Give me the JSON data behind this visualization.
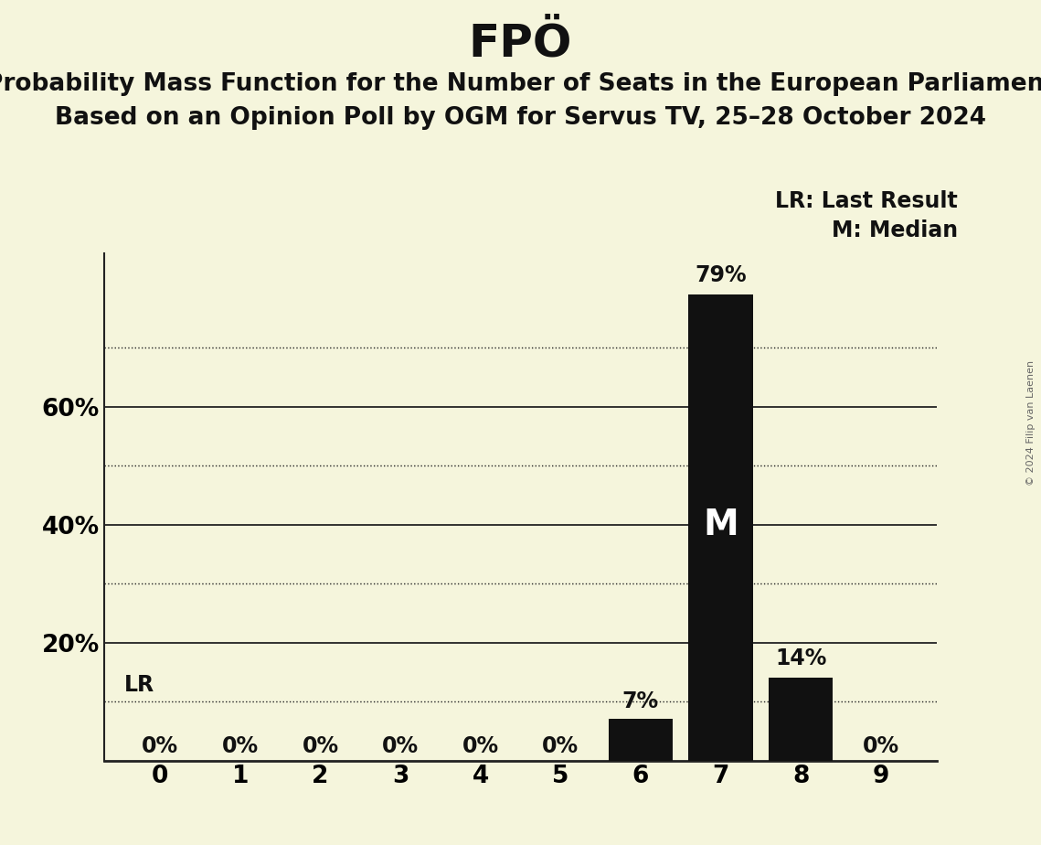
{
  "title": "FPÖ",
  "subtitle1": "Probability Mass Function for the Number of Seats in the European Parliament",
  "subtitle2": "Based on an Opinion Poll by OGM for Servus TV, 25–28 October 2024",
  "copyright": "© 2024 Filip van Laenen",
  "categories": [
    0,
    1,
    2,
    3,
    4,
    5,
    6,
    7,
    8,
    9
  ],
  "values": [
    0,
    0,
    0,
    0,
    0,
    0,
    7,
    79,
    14,
    0
  ],
  "bar_color": "#111111",
  "background_color": "#f5f5dc",
  "ylim": [
    0,
    86
  ],
  "ylabel_ticks": [
    20,
    40,
    60
  ],
  "solid_gridlines": [
    20,
    40,
    60
  ],
  "dotted_gridlines": [
    10,
    30,
    50,
    70
  ],
  "lr_line": 10,
  "median_bar_index": 7,
  "legend_lr": "LR: Last Result",
  "legend_m": "M: Median",
  "title_fontsize": 36,
  "subtitle_fontsize": 19,
  "tick_fontsize": 19,
  "bar_label_fontsize": 17,
  "legend_fontsize": 17
}
